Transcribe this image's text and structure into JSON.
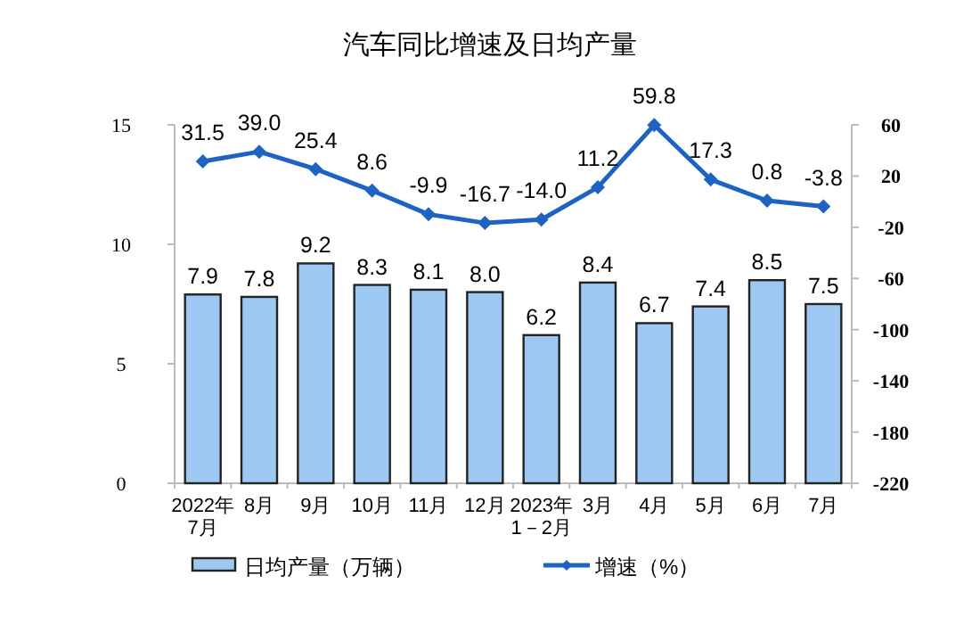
{
  "chart_data": {
    "type": "bar",
    "title": "汽车同比增速及日均产量",
    "categories": [
      "2022年\n7月",
      "8月",
      "9月",
      "10月",
      "11月",
      "12月",
      "2023年\n1－2月",
      "3月",
      "4月",
      "5月",
      "6月",
      "7月"
    ],
    "series": [
      {
        "name": "日均产量（万辆）",
        "color": "#9dc8f2",
        "values": [
          7.9,
          7.8,
          9.2,
          8.3,
          8.1,
          8.0,
          6.2,
          8.4,
          6.7,
          7.4,
          8.5,
          7.5
        ],
        "value_labels": [
          "7.9",
          "7.8",
          "9.2",
          "8.3",
          "8.1",
          "8.0",
          "6.2",
          "8.4",
          "6.7",
          "7.4",
          "8.5",
          "7.5"
        ]
      },
      {
        "name": "增速（%）",
        "type": "line",
        "axis": "y2",
        "color": "#1f63c2",
        "marker": "diamond",
        "values": [
          31.5,
          39.0,
          25.4,
          8.6,
          -9.9,
          -16.7,
          -14.0,
          11.2,
          59.8,
          17.3,
          0.8,
          -3.8
        ],
        "value_labels": [
          "31.5",
          "39.0",
          "25.4",
          "8.6",
          "-9.9",
          "-16.7",
          "-14.0",
          "11.2",
          "59.8",
          "17.3",
          "0.8",
          "-3.8"
        ]
      }
    ],
    "ylim": [
      0,
      15
    ],
    "yticks": [
      0,
      5,
      10,
      15
    ],
    "y2lim": [
      -220,
      60
    ],
    "y2ticks": [
      60,
      20,
      -20,
      -60,
      -100,
      -140,
      -180,
      -220
    ],
    "legend": "bottom",
    "grid": false
  }
}
